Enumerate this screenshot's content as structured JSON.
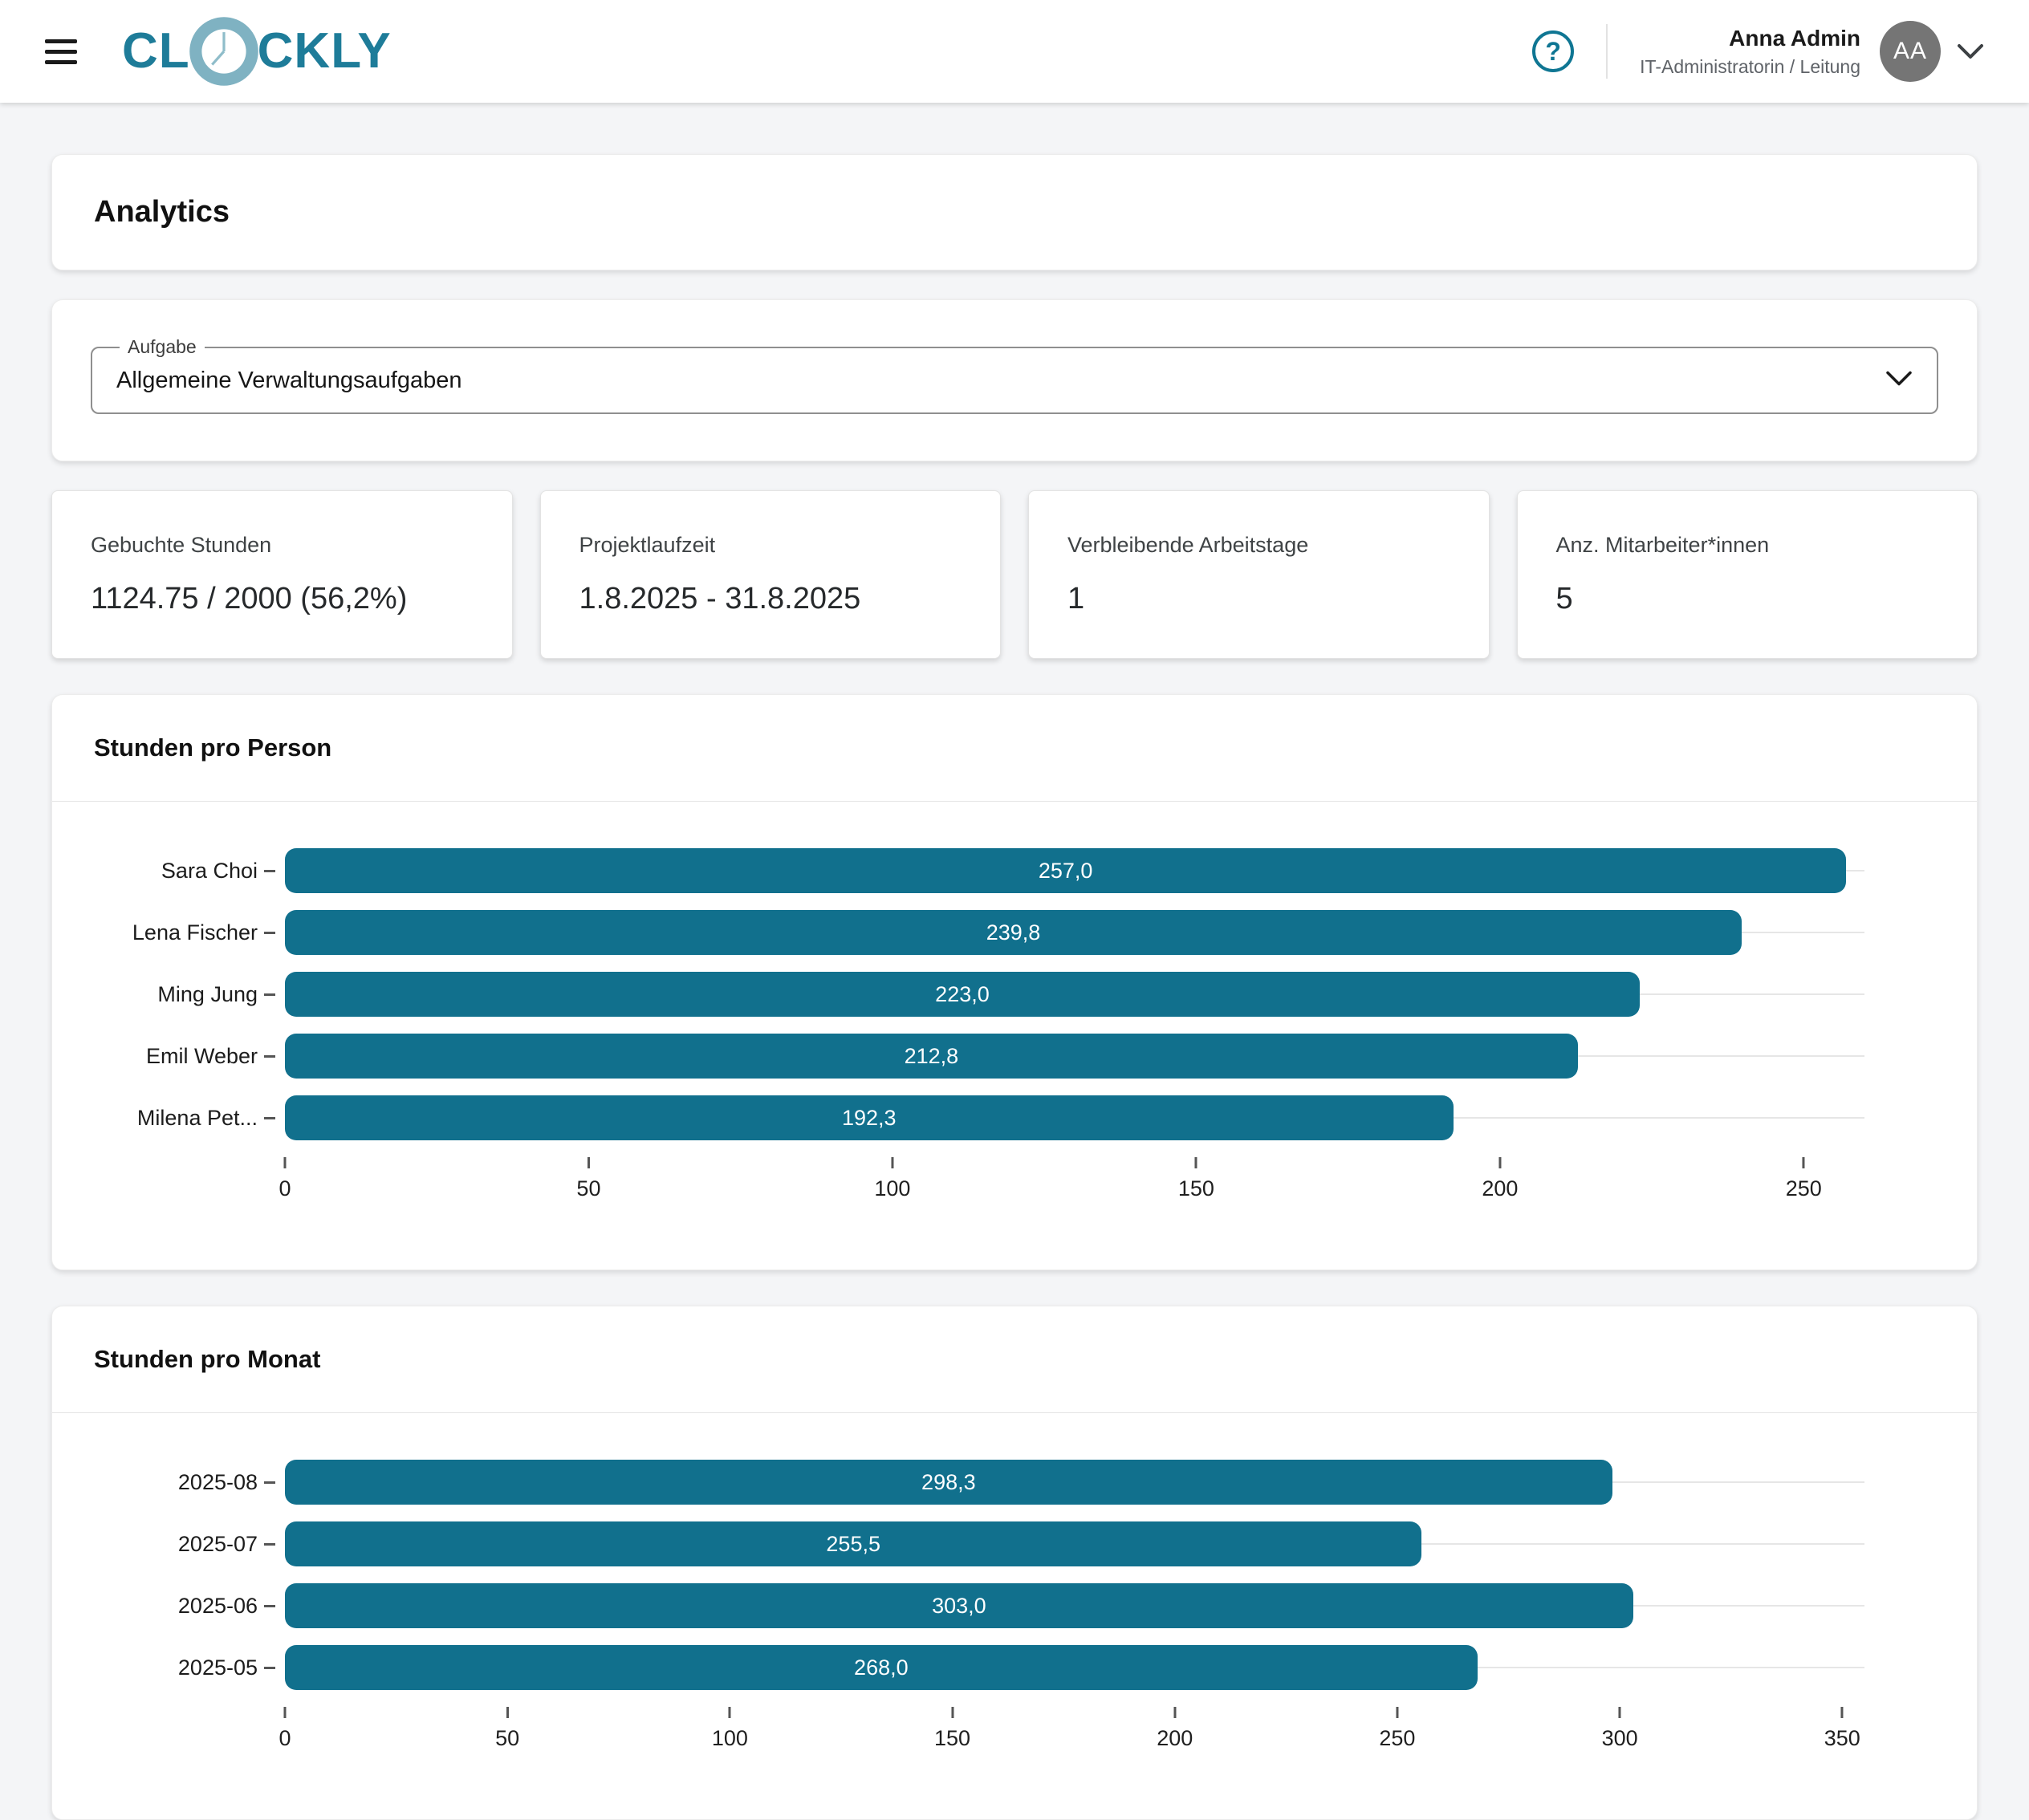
{
  "header": {
    "logo_part1": "CL",
    "logo_part2": "CKLY",
    "user": {
      "name": "Anna Admin",
      "role": "IT-Administratorin / Leitung",
      "initials": "AA"
    },
    "help_icon": "help-icon",
    "menu_icon": "hamburger-menu-icon"
  },
  "page": {
    "title": "Analytics"
  },
  "filter": {
    "label": "Aufgabe",
    "value": "Allgemeine Verwaltungsaufgaben"
  },
  "stats": [
    {
      "label": "Gebuchte Stunden",
      "value": "1124.75 / 2000 (56,2%)"
    },
    {
      "label": "Projektlaufzeit",
      "value": "1.8.2025 - 31.8.2025"
    },
    {
      "label": "Verbleibende Arbeitstage",
      "value": "1"
    },
    {
      "label": "Anz. Mitarbeiter*innen",
      "value": "5"
    }
  ],
  "colors": {
    "bar": "#11708D",
    "accent": "#1E7C99",
    "clock_ring": "#7FB2C2"
  },
  "chart_data": [
    {
      "type": "bar",
      "orientation": "horizontal",
      "title": "Stunden pro Person",
      "categories": [
        "Sara Choi",
        "Lena Fischer",
        "Ming Jung",
        "Emil Weber",
        "Milena Pet..."
      ],
      "values": [
        257.0,
        239.8,
        223.0,
        212.8,
        192.3
      ],
      "value_labels": [
        "257,0",
        "239,8",
        "223,0",
        "212,8",
        "192,3"
      ],
      "x_ticks": [
        0,
        50,
        100,
        150,
        200,
        250
      ],
      "axis_max": 260,
      "grid": true,
      "legend": "none",
      "bar_color": "#11708D"
    },
    {
      "type": "bar",
      "orientation": "horizontal",
      "title": "Stunden pro Monat",
      "categories": [
        "2025-08",
        "2025-07",
        "2025-06",
        "2025-05"
      ],
      "values": [
        298.3,
        255.5,
        303.0,
        268.0
      ],
      "value_labels": [
        "298,3",
        "255,5",
        "303,0",
        "268,0"
      ],
      "x_ticks": [
        0,
        50,
        100,
        150,
        200,
        250,
        300,
        350
      ],
      "axis_max": 355,
      "grid": true,
      "legend": "none",
      "bar_color": "#11708D"
    }
  ]
}
